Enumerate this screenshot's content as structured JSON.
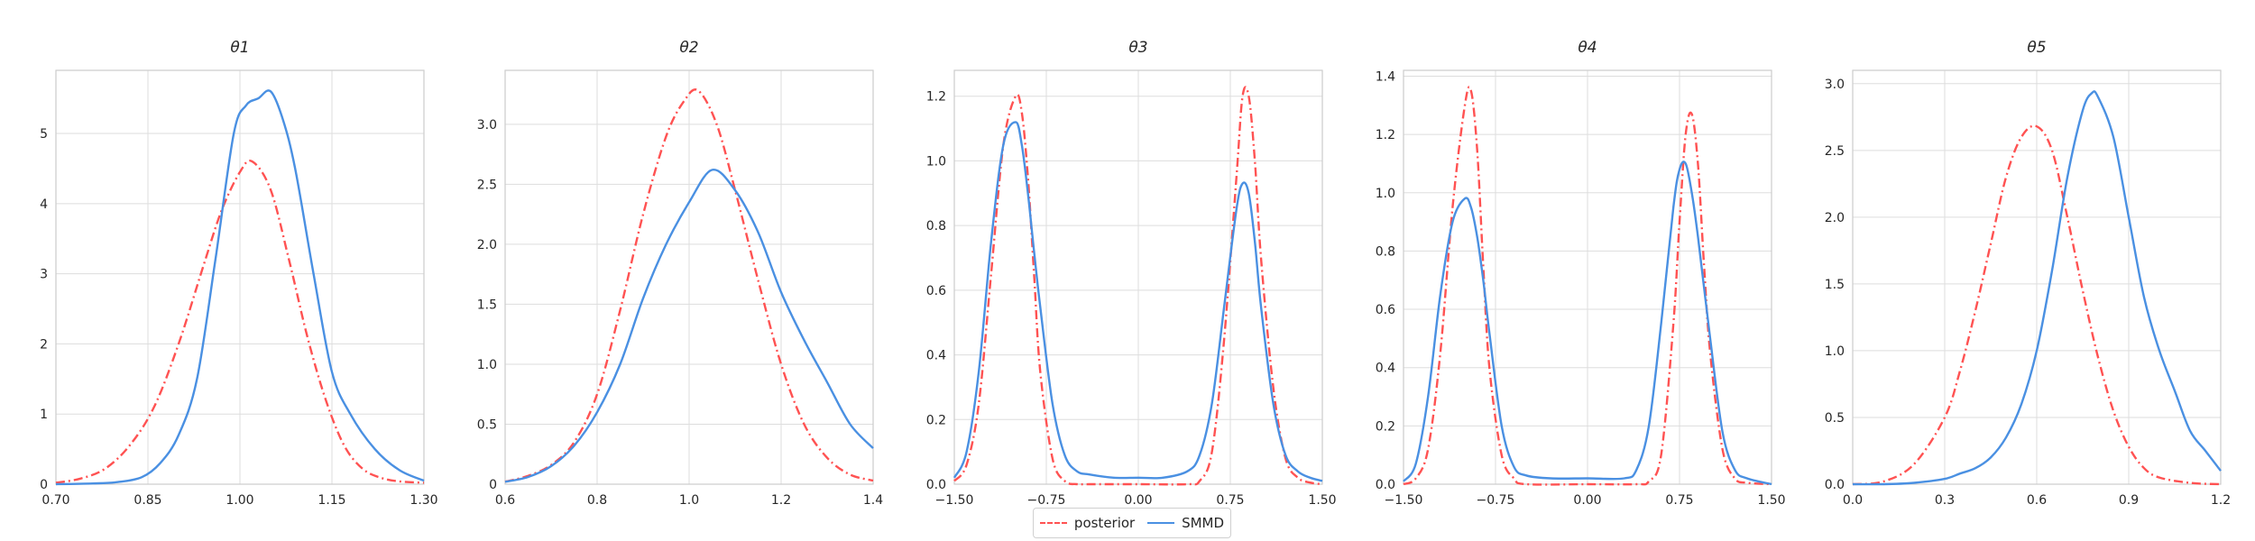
{
  "colors": {
    "posterior": "#ff5252",
    "smmd": "#4a90e2",
    "grid": "#dddddd",
    "frame": "#cccccc"
  },
  "legend": {
    "posterior_label": "posterior",
    "smmd_label": "SMMD"
  },
  "chart_data": [
    {
      "type": "line",
      "title": "θ1",
      "xlim": [
        0.7,
        1.3
      ],
      "ylim": [
        0,
        5.9
      ],
      "xticks": [
        0.7,
        0.85,
        1.0,
        1.15,
        1.3
      ],
      "xtick_labels": [
        "0.70",
        "0.85",
        "1.00",
        "1.15",
        "1.30"
      ],
      "yticks": [
        0,
        1,
        2,
        3,
        4,
        5
      ],
      "ytick_labels": [
        "0",
        "1",
        "2",
        "3",
        "4",
        "5"
      ],
      "grid": true,
      "series": [
        {
          "name": "posterior",
          "style": "dashdot",
          "x": [
            0.7,
            0.74,
            0.78,
            0.82,
            0.86,
            0.9,
            0.94,
            0.97,
            1.0,
            1.02,
            1.05,
            1.08,
            1.11,
            1.14,
            1.17,
            1.2,
            1.23,
            1.26,
            1.3
          ],
          "y": [
            0.02,
            0.08,
            0.22,
            0.55,
            1.1,
            2.0,
            3.1,
            3.9,
            4.45,
            4.6,
            4.2,
            3.2,
            2.1,
            1.2,
            0.55,
            0.22,
            0.09,
            0.04,
            0.02
          ]
        },
        {
          "name": "SMMD",
          "style": "solid",
          "x": [
            0.7,
            0.76,
            0.8,
            0.84,
            0.87,
            0.9,
            0.93,
            0.96,
            0.99,
            1.01,
            1.03,
            1.05,
            1.07,
            1.09,
            1.12,
            1.15,
            1.18,
            1.22,
            1.26,
            1.3
          ],
          "y": [
            0.0,
            0.01,
            0.03,
            0.1,
            0.3,
            0.7,
            1.5,
            3.2,
            5.0,
            5.4,
            5.5,
            5.6,
            5.2,
            4.5,
            3.0,
            1.6,
            1.0,
            0.5,
            0.2,
            0.05
          ]
        }
      ]
    },
    {
      "type": "line",
      "title": "θ2",
      "xlim": [
        0.6,
        1.4
      ],
      "ylim": [
        0,
        3.45
      ],
      "xticks": [
        0.6,
        0.8,
        1.0,
        1.2,
        1.4
      ],
      "xtick_labels": [
        "0.6",
        "0.8",
        "1.0",
        "1.2",
        "1.4"
      ],
      "yticks": [
        0,
        0.5,
        1.0,
        1.5,
        2.0,
        2.5,
        3.0
      ],
      "ytick_labels": [
        "0",
        "0.5",
        "1.0",
        "1.5",
        "2.0",
        "2.5",
        "3.0"
      ],
      "grid": true,
      "series": [
        {
          "name": "posterior",
          "style": "dashdot",
          "x": [
            0.6,
            0.65,
            0.7,
            0.75,
            0.8,
            0.85,
            0.9,
            0.95,
            0.99,
            1.02,
            1.06,
            1.1,
            1.15,
            1.2,
            1.25,
            1.3,
            1.35,
            1.4
          ],
          "y": [
            0.02,
            0.07,
            0.16,
            0.35,
            0.75,
            1.45,
            2.25,
            2.9,
            3.2,
            3.28,
            3.0,
            2.45,
            1.7,
            1.0,
            0.5,
            0.22,
            0.08,
            0.03
          ]
        },
        {
          "name": "SMMD",
          "style": "solid",
          "x": [
            0.6,
            0.65,
            0.7,
            0.75,
            0.8,
            0.85,
            0.9,
            0.95,
            1.0,
            1.05,
            1.1,
            1.15,
            1.2,
            1.25,
            1.3,
            1.35,
            1.4
          ],
          "y": [
            0.02,
            0.06,
            0.15,
            0.32,
            0.6,
            1.0,
            1.55,
            2.0,
            2.35,
            2.62,
            2.45,
            2.1,
            1.6,
            1.2,
            0.85,
            0.5,
            0.3
          ]
        }
      ]
    },
    {
      "type": "line",
      "title": "θ3",
      "xlim": [
        -1.5,
        1.5
      ],
      "ylim": [
        0,
        1.28
      ],
      "xticks": [
        -1.5,
        -0.75,
        0.0,
        0.75,
        1.5
      ],
      "xtick_labels": [
        "−1.50",
        "−0.75",
        "0.00",
        "0.75",
        "1.50"
      ],
      "yticks": [
        0,
        0.2,
        0.4,
        0.6,
        0.8,
        1.0,
        1.2
      ],
      "ytick_labels": [
        "0.0",
        "0.2",
        "0.4",
        "0.6",
        "0.8",
        "1.0",
        "1.2"
      ],
      "grid": true,
      "series": [
        {
          "name": "posterior",
          "style": "dashdot",
          "x": [
            -1.5,
            -1.4,
            -1.3,
            -1.2,
            -1.1,
            -1.0,
            -0.95,
            -0.9,
            -0.85,
            -0.8,
            -0.7,
            -0.6,
            -0.5,
            -0.4,
            0.0,
            0.4,
            0.5,
            0.6,
            0.7,
            0.8,
            0.85,
            0.9,
            0.95,
            1.0,
            1.1,
            1.2,
            1.3,
            1.4,
            1.5
          ],
          "y": [
            0.01,
            0.06,
            0.25,
            0.65,
            1.05,
            1.2,
            1.15,
            0.95,
            0.65,
            0.35,
            0.08,
            0.01,
            0.0,
            0.0,
            0.0,
            0.0,
            0.01,
            0.1,
            0.45,
            0.95,
            1.2,
            1.2,
            1.0,
            0.7,
            0.3,
            0.08,
            0.02,
            0.005,
            0.0
          ]
        },
        {
          "name": "SMMD",
          "style": "solid",
          "x": [
            -1.5,
            -1.4,
            -1.3,
            -1.2,
            -1.1,
            -1.0,
            -0.95,
            -0.9,
            -0.85,
            -0.8,
            -0.7,
            -0.6,
            -0.5,
            -0.4,
            -0.2,
            0.0,
            0.2,
            0.4,
            0.5,
            0.6,
            0.7,
            0.8,
            0.85,
            0.9,
            0.95,
            1.0,
            1.1,
            1.2,
            1.3,
            1.4,
            1.5
          ],
          "y": [
            0.02,
            0.1,
            0.35,
            0.75,
            1.05,
            1.12,
            1.05,
            0.9,
            0.72,
            0.55,
            0.25,
            0.09,
            0.04,
            0.03,
            0.02,
            0.02,
            0.02,
            0.04,
            0.09,
            0.25,
            0.55,
            0.85,
            0.93,
            0.9,
            0.75,
            0.55,
            0.25,
            0.09,
            0.04,
            0.02,
            0.01
          ]
        }
      ]
    },
    {
      "type": "line",
      "title": "θ4",
      "xlim": [
        -1.5,
        1.5
      ],
      "ylim": [
        0,
        1.42
      ],
      "xticks": [
        -1.5,
        -0.75,
        0.0,
        0.75,
        1.5
      ],
      "xtick_labels": [
        "−1.50",
        "−0.75",
        "0.00",
        "0.75",
        "1.50"
      ],
      "yticks": [
        0,
        0.2,
        0.4,
        0.6,
        0.8,
        1.0,
        1.2,
        1.4
      ],
      "ytick_labels": [
        "0.0",
        "0.2",
        "0.4",
        "0.6",
        "0.8",
        "1.0",
        "1.2",
        "1.4"
      ],
      "grid": true,
      "series": [
        {
          "name": "posterior",
          "style": "dashdot",
          "x": [
            -1.5,
            -1.4,
            -1.3,
            -1.2,
            -1.1,
            -1.0,
            -0.95,
            -0.9,
            -0.85,
            -0.8,
            -0.7,
            -0.6,
            -0.5,
            0.0,
            0.4,
            0.5,
            0.6,
            0.7,
            0.75,
            0.8,
            0.85,
            0.9,
            0.95,
            1.0,
            1.1,
            1.2,
            1.3,
            1.5
          ],
          "y": [
            0.0,
            0.02,
            0.12,
            0.45,
            0.95,
            1.3,
            1.35,
            1.15,
            0.75,
            0.4,
            0.1,
            0.02,
            0.0,
            0.0,
            0.0,
            0.01,
            0.1,
            0.55,
            0.9,
            1.2,
            1.27,
            1.1,
            0.75,
            0.45,
            0.12,
            0.02,
            0.005,
            0.0
          ]
        },
        {
          "name": "SMMD",
          "style": "solid",
          "x": [
            -1.5,
            -1.4,
            -1.3,
            -1.2,
            -1.1,
            -1.0,
            -0.95,
            -0.9,
            -0.85,
            -0.8,
            -0.7,
            -0.6,
            -0.5,
            -0.3,
            0.0,
            0.3,
            0.4,
            0.5,
            0.6,
            0.7,
            0.75,
            0.8,
            0.85,
            0.9,
            1.0,
            1.1,
            1.2,
            1.3,
            1.5
          ],
          "y": [
            0.01,
            0.07,
            0.3,
            0.65,
            0.9,
            0.98,
            0.95,
            0.85,
            0.7,
            0.52,
            0.2,
            0.06,
            0.03,
            0.02,
            0.02,
            0.02,
            0.05,
            0.2,
            0.55,
            0.95,
            1.08,
            1.1,
            1.0,
            0.85,
            0.5,
            0.18,
            0.05,
            0.02,
            0.0
          ]
        }
      ]
    },
    {
      "type": "line",
      "title": "θ5",
      "xlim": [
        0.0,
        1.2
      ],
      "ylim": [
        0,
        3.1
      ],
      "xticks": [
        0.0,
        0.3,
        0.6,
        0.9,
        1.2
      ],
      "xtick_labels": [
        "0.0",
        "0.3",
        "0.6",
        "0.9",
        "1.2"
      ],
      "yticks": [
        0,
        0.5,
        1.0,
        1.5,
        2.0,
        2.5,
        3.0
      ],
      "ytick_labels": [
        "0.0",
        "0.5",
        "1.0",
        "1.5",
        "2.0",
        "2.5",
        "3.0"
      ],
      "grid": true,
      "series": [
        {
          "name": "posterior",
          "style": "dashdot",
          "x": [
            0.0,
            0.1,
            0.2,
            0.3,
            0.35,
            0.4,
            0.45,
            0.5,
            0.55,
            0.6,
            0.65,
            0.7,
            0.75,
            0.8,
            0.85,
            0.9,
            0.95,
            1.0,
            1.1,
            1.2
          ],
          "y": [
            0.0,
            0.02,
            0.15,
            0.5,
            0.85,
            1.3,
            1.8,
            2.3,
            2.6,
            2.68,
            2.5,
            2.0,
            1.45,
            0.95,
            0.55,
            0.28,
            0.12,
            0.05,
            0.01,
            0.0
          ]
        },
        {
          "name": "SMMD",
          "style": "solid",
          "x": [
            0.0,
            0.1,
            0.2,
            0.3,
            0.35,
            0.4,
            0.45,
            0.5,
            0.55,
            0.6,
            0.65,
            0.7,
            0.75,
            0.78,
            0.8,
            0.85,
            0.9,
            0.95,
            1.0,
            1.05,
            1.1,
            1.15,
            1.2
          ],
          "y": [
            0.0,
            0.0,
            0.01,
            0.04,
            0.08,
            0.12,
            0.2,
            0.35,
            0.6,
            1.0,
            1.6,
            2.3,
            2.8,
            2.93,
            2.9,
            2.6,
            2.0,
            1.4,
            1.0,
            0.7,
            0.4,
            0.25,
            0.1
          ]
        }
      ]
    }
  ]
}
